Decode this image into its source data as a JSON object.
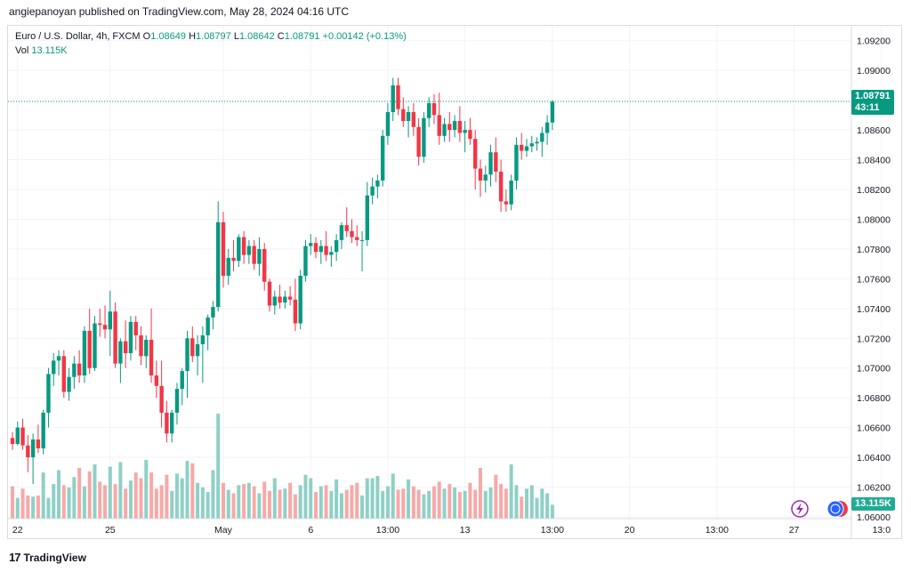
{
  "header": {
    "published_by": "angiepanoyan published on TradingView.com, May 28, 2024 04:16 UTC"
  },
  "legend": {
    "symbol": "Euro / U.S. Dollar, 4h, FXCM",
    "o_label": "O",
    "o_value": "1.08649",
    "h_label": "H",
    "h_value": "1.08797",
    "l_label": "L",
    "l_value": "1.08642",
    "c_label": "C",
    "c_value": "1.08791",
    "change": "+0.00142 (+0.13%)",
    "vol_label": "Vol",
    "vol_value": "13.115K"
  },
  "price_tag": {
    "price": "1.08791",
    "countdown": "43:11"
  },
  "volume_tag": "13.115K",
  "footer": {
    "logo": "17",
    "brand": "TradingView"
  },
  "colors": {
    "up": "#089981",
    "down": "#f23645",
    "vol_up": "#8fd0c6",
    "vol_down": "#f7a9a7"
  },
  "chart_data": {
    "type": "candlestick",
    "title": "Euro / U.S. Dollar, 4h, FXCM",
    "ylim": [
      1.06,
      1.093
    ],
    "y_ticks": [
      "1.09200",
      "1.09000",
      "1.08800",
      "1.08600",
      "1.08400",
      "1.08200",
      "1.08000",
      "1.07800",
      "1.07600",
      "1.07400",
      "1.07200",
      "1.07000",
      "1.06800",
      "1.06600",
      "1.06400",
      "1.06200",
      "1.06000"
    ],
    "y_tick_values": [
      1.092,
      1.09,
      1.088,
      1.086,
      1.084,
      1.082,
      1.08,
      1.078,
      1.076,
      1.074,
      1.072,
      1.07,
      1.068,
      1.066,
      1.064,
      1.062,
      1.06
    ],
    "x_ticks": [
      {
        "label": "22",
        "index": 1
      },
      {
        "label": "25",
        "index": 19
      },
      {
        "label": "May",
        "index": 41
      },
      {
        "label": "6",
        "index": 58
      },
      {
        "label": "13:00",
        "index": 73
      },
      {
        "label": "13",
        "index": 88
      },
      {
        "label": "13:00",
        "index": 105
      },
      {
        "label": "20",
        "index": 120
      },
      {
        "label": "13:00",
        "index": 137
      },
      {
        "label": "27",
        "index": 152
      },
      {
        "label": "13:0",
        "index": 169
      }
    ],
    "last_price": 1.08791,
    "candles": [
      [
        1.0653,
        1.0657,
        1.0645,
        1.0649
      ],
      [
        1.0649,
        1.0664,
        1.0648,
        1.066
      ],
      [
        1.066,
        1.0666,
        1.0645,
        1.0648
      ],
      [
        1.0648,
        1.0655,
        1.063,
        1.064
      ],
      [
        1.064,
        1.0656,
        1.0622,
        1.0652
      ],
      [
        1.0652,
        1.0662,
        1.0643,
        1.0646
      ],
      [
        1.0646,
        1.0672,
        1.0642,
        1.067
      ],
      [
        1.067,
        1.07,
        1.066,
        1.0696
      ],
      [
        1.0696,
        1.071,
        1.0688,
        1.0705
      ],
      [
        1.0705,
        1.0712,
        1.0695,
        1.0708
      ],
      [
        1.0708,
        1.0712,
        1.068,
        1.0684
      ],
      [
        1.0684,
        1.07,
        1.0678,
        1.0694
      ],
      [
        1.0694,
        1.0708,
        1.0686,
        1.0703
      ],
      [
        1.0703,
        1.0712,
        1.069,
        1.0695
      ],
      [
        1.0695,
        1.0728,
        1.069,
        1.0725
      ],
      [
        1.0725,
        1.074,
        1.0696,
        1.07
      ],
      [
        1.07,
        1.0735,
        1.0698,
        1.073
      ],
      [
        1.073,
        1.074,
        1.0721,
        1.0729
      ],
      [
        1.0729,
        1.0742,
        1.072,
        1.0726
      ],
      [
        1.0726,
        1.0752,
        1.0708,
        1.0738
      ],
      [
        1.0738,
        1.0744,
        1.07,
        1.0703
      ],
      [
        1.0703,
        1.072,
        1.069,
        1.0718
      ],
      [
        1.0718,
        1.0732,
        1.07,
        1.071
      ],
      [
        1.071,
        1.0735,
        1.0705,
        1.0731
      ],
      [
        1.0731,
        1.0735,
        1.0712,
        1.0722
      ],
      [
        1.0722,
        1.0728,
        1.0702,
        1.0708
      ],
      [
        1.0708,
        1.0722,
        1.07,
        1.0719
      ],
      [
        1.0719,
        1.074,
        1.069,
        1.0695
      ],
      [
        1.0695,
        1.0705,
        1.068,
        1.0688
      ],
      [
        1.0688,
        1.0705,
        1.066,
        1.067
      ],
      [
        1.067,
        1.0678,
        1.065,
        1.0656
      ],
      [
        1.0656,
        1.0672,
        1.065,
        1.067
      ],
      [
        1.067,
        1.069,
        1.0662,
        1.0686
      ],
      [
        1.0686,
        1.07,
        1.0675,
        1.0698
      ],
      [
        1.0698,
        1.0725,
        1.068,
        1.072
      ],
      [
        1.072,
        1.0728,
        1.0704,
        1.0708
      ],
      [
        1.0708,
        1.0722,
        1.0695,
        1.0716
      ],
      [
        1.0716,
        1.0728,
        1.069,
        1.0722
      ],
      [
        1.0722,
        1.0736,
        1.0712,
        1.0734
      ],
      [
        1.0734,
        1.0745,
        1.0726,
        1.0741
      ],
      [
        1.0741,
        1.0812,
        1.0738,
        1.0798
      ],
      [
        1.0798,
        1.0805,
        1.0754,
        1.0762
      ],
      [
        1.0762,
        1.078,
        1.0756,
        1.0774
      ],
      [
        1.0774,
        1.0786,
        1.0765,
        1.0772
      ],
      [
        1.0772,
        1.079,
        1.0768,
        1.0788
      ],
      [
        1.0788,
        1.0792,
        1.077,
        1.0776
      ],
      [
        1.0776,
        1.0786,
        1.077,
        1.0782
      ],
      [
        1.0782,
        1.0786,
        1.0766,
        1.077
      ],
      [
        1.077,
        1.0788,
        1.0762,
        1.078
      ],
      [
        1.078,
        1.0784,
        1.0752,
        1.0758
      ],
      [
        1.0758,
        1.076,
        1.0738,
        1.0742
      ],
      [
        1.0742,
        1.0752,
        1.0736,
        1.0748
      ],
      [
        1.0748,
        1.0756,
        1.074,
        1.0744
      ],
      [
        1.0744,
        1.0752,
        1.074,
        1.0748
      ],
      [
        1.0748,
        1.0755,
        1.0742,
        1.0746
      ],
      [
        1.0746,
        1.076,
        1.0725,
        1.073
      ],
      [
        1.073,
        1.0766,
        1.0726,
        1.0762
      ],
      [
        1.0762,
        1.0786,
        1.0758,
        1.0782
      ],
      [
        1.0782,
        1.079,
        1.0776,
        1.0784
      ],
      [
        1.0784,
        1.0788,
        1.0774,
        1.0778
      ],
      [
        1.0778,
        1.0786,
        1.077,
        1.0782
      ],
      [
        1.0782,
        1.0792,
        1.0772,
        1.0776
      ],
      [
        1.0776,
        1.0782,
        1.0768,
        1.0778
      ],
      [
        1.0778,
        1.079,
        1.0772,
        1.0786
      ],
      [
        1.0786,
        1.0798,
        1.078,
        1.0796
      ],
      [
        1.0796,
        1.0808,
        1.0788,
        1.0792
      ],
      [
        1.0792,
        1.08,
        1.0784,
        1.0788
      ],
      [
        1.0788,
        1.0796,
        1.0782,
        1.0786
      ],
      [
        1.0786,
        1.0792,
        1.0765,
        1.0786
      ],
      [
        1.0786,
        1.0825,
        1.0782,
        1.0816
      ],
      [
        1.0816,
        1.0828,
        1.081,
        1.0822
      ],
      [
        1.0822,
        1.083,
        1.0814,
        1.0826
      ],
      [
        1.0826,
        1.086,
        1.0822,
        1.0856
      ],
      [
        1.0856,
        1.0878,
        1.085,
        1.0872
      ],
      [
        1.0872,
        1.0895,
        1.0866,
        1.089
      ],
      [
        1.089,
        1.0895,
        1.087,
        1.0874
      ],
      [
        1.0874,
        1.0882,
        1.0862,
        1.0866
      ],
      [
        1.0866,
        1.0876,
        1.0855,
        1.0872
      ],
      [
        1.0872,
        1.0878,
        1.0856,
        1.0862
      ],
      [
        1.0862,
        1.0868,
        1.0836,
        1.0842
      ],
      [
        1.0842,
        1.0872,
        1.0838,
        1.0868
      ],
      [
        1.0868,
        1.0882,
        1.0862,
        1.0878
      ],
      [
        1.0878,
        1.0884,
        1.0864,
        1.087
      ],
      [
        1.087,
        1.0885,
        1.085,
        1.0856
      ],
      [
        1.0856,
        1.0868,
        1.0852,
        1.0864
      ],
      [
        1.0864,
        1.0872,
        1.0852,
        1.086
      ],
      [
        1.086,
        1.087,
        1.0855,
        1.0866
      ],
      [
        1.0866,
        1.0876,
        1.0852,
        1.0858
      ],
      [
        1.0858,
        1.0866,
        1.0845,
        1.086
      ],
      [
        1.086,
        1.0868,
        1.085,
        1.0854
      ],
      [
        1.0854,
        1.086,
        1.082,
        1.0834
      ],
      [
        1.0834,
        1.084,
        1.0815,
        1.0826
      ],
      [
        1.0826,
        1.0836,
        1.0818,
        1.083
      ],
      [
        1.083,
        1.085,
        1.0822,
        1.0845
      ],
      [
        1.0845,
        1.0855,
        1.0825,
        1.0832
      ],
      [
        1.0832,
        1.084,
        1.0805,
        1.0812
      ],
      [
        1.0812,
        1.082,
        1.0805,
        1.081
      ],
      [
        1.081,
        1.083,
        1.0806,
        1.0826
      ],
      [
        1.0826,
        1.0855,
        1.082,
        1.085
      ],
      [
        1.085,
        1.0858,
        1.084,
        1.0846
      ],
      [
        1.0846,
        1.0854,
        1.0842,
        1.0849
      ],
      [
        1.0849,
        1.0856,
        1.0845,
        1.0851
      ],
      [
        1.0851,
        1.0855,
        1.0846,
        1.0852
      ],
      [
        1.0852,
        1.0862,
        1.0842,
        1.0858
      ],
      [
        1.0858,
        1.087,
        1.085,
        1.0865
      ],
      [
        1.0865,
        1.088,
        1.086,
        1.0879
      ]
    ],
    "volumes": [
      2.8,
      1.8,
      2.6,
      2.0,
      1.9,
      2.0,
      4.0,
      1.8,
      3.0,
      4.2,
      2.9,
      2.7,
      3.6,
      4.4,
      2.8,
      4.1,
      4.7,
      3.2,
      2.9,
      4.5,
      3.0,
      4.9,
      2.6,
      3.3,
      4.0,
      3.5,
      5.1,
      4.0,
      2.6,
      2.9,
      3.8,
      2.4,
      3.9,
      3.5,
      5.0,
      4.8,
      3.1,
      2.7,
      2.3,
      4.2,
      9.1,
      3.1,
      2.5,
      2.2,
      2.9,
      3.0,
      3.1,
      2.8,
      2.2,
      3.2,
      2.4,
      3.5,
      2.5,
      2.6,
      3.1,
      2.1,
      2.9,
      3.8,
      3.5,
      2.3,
      2.8,
      2.9,
      2.4,
      3.4,
      2.2,
      2.5,
      2.9,
      3.1,
      2.0,
      3.5,
      3.5,
      3.7,
      2.4,
      2.8,
      3.9,
      2.5,
      2.6,
      3.4,
      2.8,
      2.5,
      2.1,
      2.4,
      2.8,
      3.2,
      2.6,
      3.0,
      2.7,
      2.3,
      2.4,
      3.1,
      2.5,
      4.4,
      2.4,
      2.7,
      3.8,
      3.0,
      2.6,
      4.7,
      2.9,
      1.9,
      2.6,
      2.9,
      1.8,
      2.6,
      2.2,
      1.2
    ]
  }
}
